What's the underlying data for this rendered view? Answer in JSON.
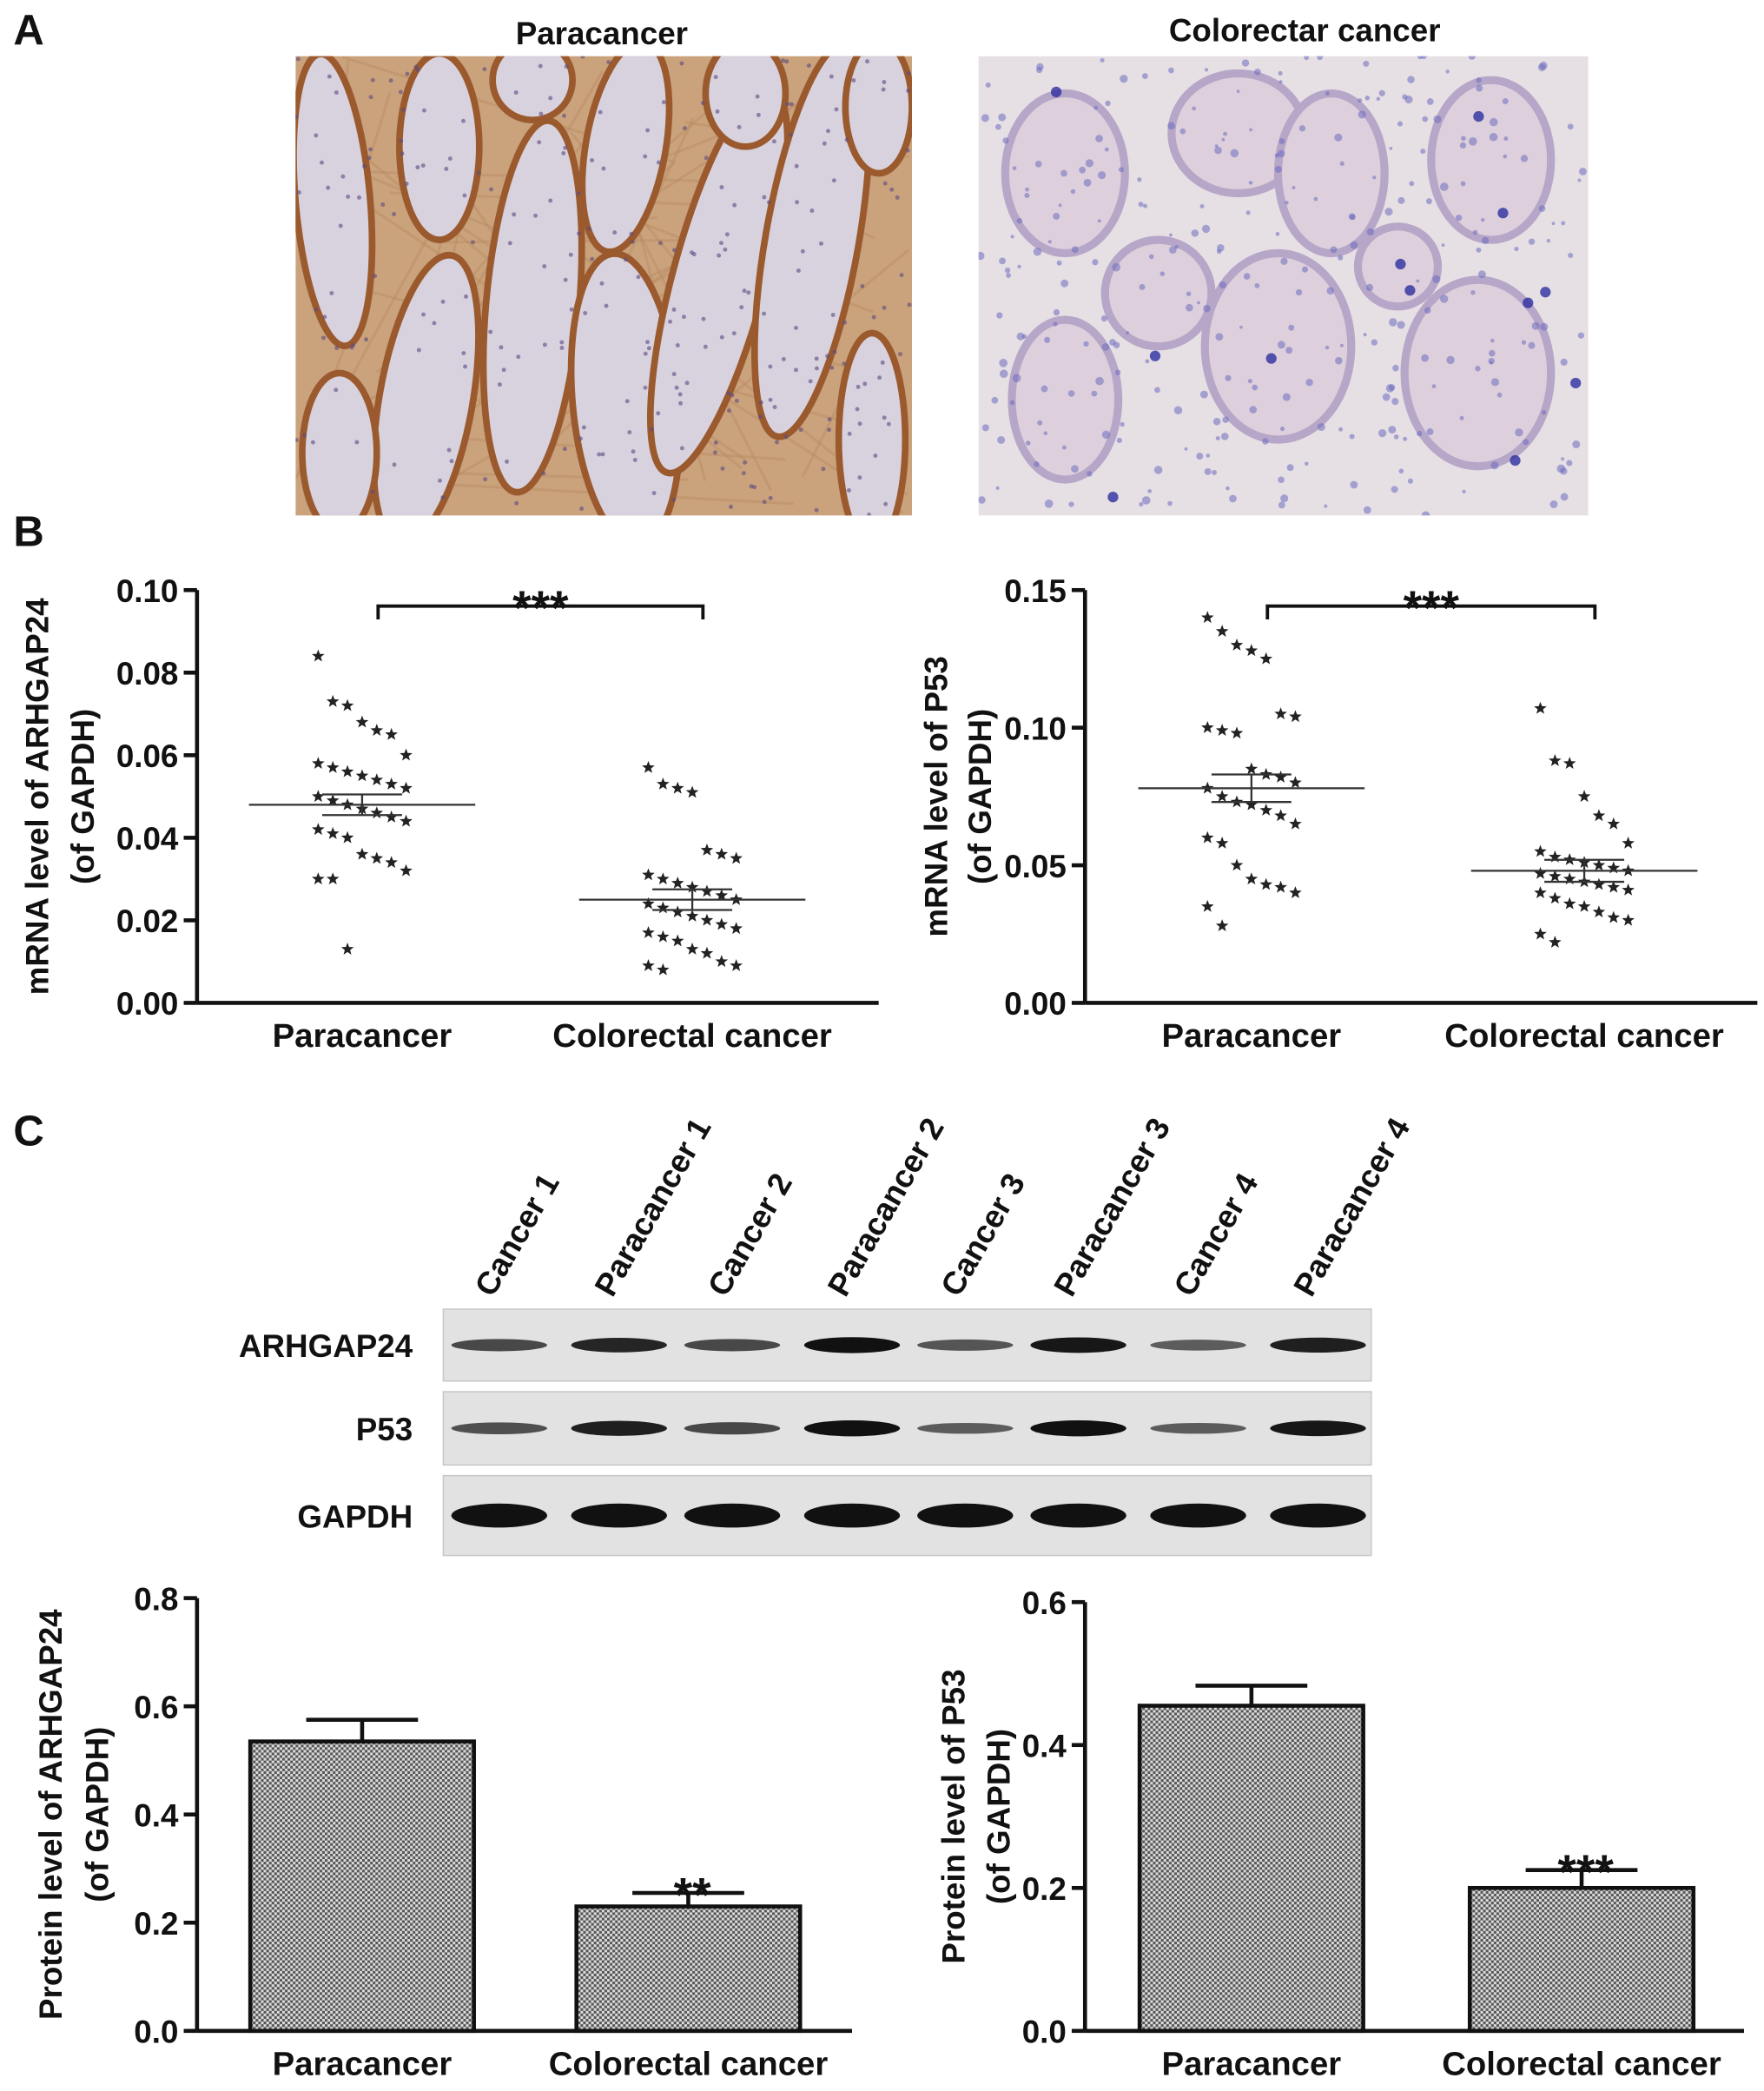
{
  "panels": [
    "A",
    "B",
    "C"
  ],
  "images": [
    {
      "title": "Paracancer"
    },
    {
      "title": "Colorectar cancer"
    }
  ],
  "blot": {
    "lanes": [
      "Cancer 1",
      "Paracancer 1",
      "Cancer 2",
      "Paracancer 2",
      "Cancer 3",
      "Paracancer 3",
      "Cancer 4",
      "Paracancer 4"
    ],
    "rows": [
      "ARHGAP24",
      "P53",
      "GAPDH"
    ]
  },
  "chart_data": [
    {
      "type": "dotplot",
      "ylabel": [
        "mRNA level of ARHGAP24",
        "(of GAPDH)"
      ],
      "categories": [
        "Paracancer",
        "Colorectal cancer"
      ],
      "marker": "star",
      "color": "#222222",
      "values": [
        [
          0.084,
          0.073,
          0.072,
          0.068,
          0.066,
          0.065,
          0.06,
          0.058,
          0.057,
          0.056,
          0.055,
          0.054,
          0.053,
          0.052,
          0.05,
          0.049,
          0.048,
          0.047,
          0.046,
          0.045,
          0.044,
          0.042,
          0.041,
          0.04,
          0.036,
          0.035,
          0.034,
          0.032,
          0.03,
          0.03,
          0.013
        ],
        [
          0.057,
          0.053,
          0.052,
          0.051,
          0.037,
          0.036,
          0.035,
          0.031,
          0.03,
          0.029,
          0.028,
          0.027,
          0.026,
          0.025,
          0.024,
          0.023,
          0.022,
          0.021,
          0.02,
          0.019,
          0.018,
          0.017,
          0.016,
          0.015,
          0.013,
          0.012,
          0.01,
          0.009,
          0.009,
          0.008
        ]
      ],
      "means": [
        0.048,
        0.025
      ],
      "errors": [
        0.0025,
        0.0025
      ],
      "annotation": "***",
      "ylim": [
        0,
        0.1
      ],
      "yticks": [
        {
          "value": 0,
          "label": "0.00"
        },
        0.02,
        0.04,
        0.06,
        0.08,
        {
          "value": 0.1,
          "label": "0.10"
        }
      ]
    },
    {
      "type": "dotplot",
      "ylabel": [
        "mRNA level of P53",
        "(of GAPDH)"
      ],
      "categories": [
        "Paracancer",
        "Colorectal cancer"
      ],
      "marker": "star",
      "color": "#222222",
      "values": [
        [
          0.14,
          0.135,
          0.13,
          0.128,
          0.125,
          0.105,
          0.104,
          0.1,
          0.099,
          0.098,
          0.085,
          0.083,
          0.082,
          0.08,
          0.078,
          0.075,
          0.073,
          0.072,
          0.07,
          0.068,
          0.065,
          0.06,
          0.058,
          0.05,
          0.045,
          0.043,
          0.042,
          0.04,
          0.035,
          0.028
        ],
        [
          0.107,
          0.088,
          0.087,
          0.075,
          0.068,
          0.065,
          0.058,
          0.055,
          0.053,
          0.052,
          0.051,
          0.05,
          0.049,
          0.048,
          0.047,
          0.046,
          0.045,
          0.044,
          0.043,
          0.042,
          0.041,
          0.04,
          0.038,
          0.036,
          0.035,
          0.033,
          0.031,
          0.03,
          0.025,
          0.022
        ]
      ],
      "means": [
        0.078,
        0.048
      ],
      "errors": [
        0.005,
        0.004
      ],
      "annotation": "***",
      "ylim": [
        0,
        0.15
      ],
      "yticks": [
        {
          "value": 0,
          "label": "0.00"
        },
        0.05,
        {
          "value": 0.1,
          "label": "0.10"
        },
        {
          "value": 0.15,
          "label": "0.15"
        }
      ]
    },
    {
      "type": "bar",
      "ylabel": [
        "Protein level of ARHGAP24",
        "(of GAPDH)"
      ],
      "categories": [
        "Paracancer",
        "Colorectal cancer"
      ],
      "values": [
        0.535,
        0.23
      ],
      "errors": [
        0.04,
        0.025
      ],
      "annotations": [
        null,
        "**"
      ],
      "color": "#888888",
      "ylim": [
        0,
        0.8
      ],
      "yticks": [
        {
          "value": 0,
          "label": "0.0"
        },
        0.2,
        0.4,
        0.6,
        0.8
      ]
    },
    {
      "type": "bar",
      "ylabel": [
        "Protein level of P53",
        "(of GAPDH)"
      ],
      "categories": [
        "Paracancer",
        "Colorectal cancer"
      ],
      "values": [
        0.455,
        0.2
      ],
      "errors": [
        0.028,
        0.025
      ],
      "annotations": [
        null,
        "***"
      ],
      "color": "#888888",
      "ylim": [
        0,
        0.6
      ],
      "yticks": [
        {
          "value": 0,
          "label": "0.0"
        },
        0.2,
        0.4,
        0.6
      ]
    }
  ]
}
